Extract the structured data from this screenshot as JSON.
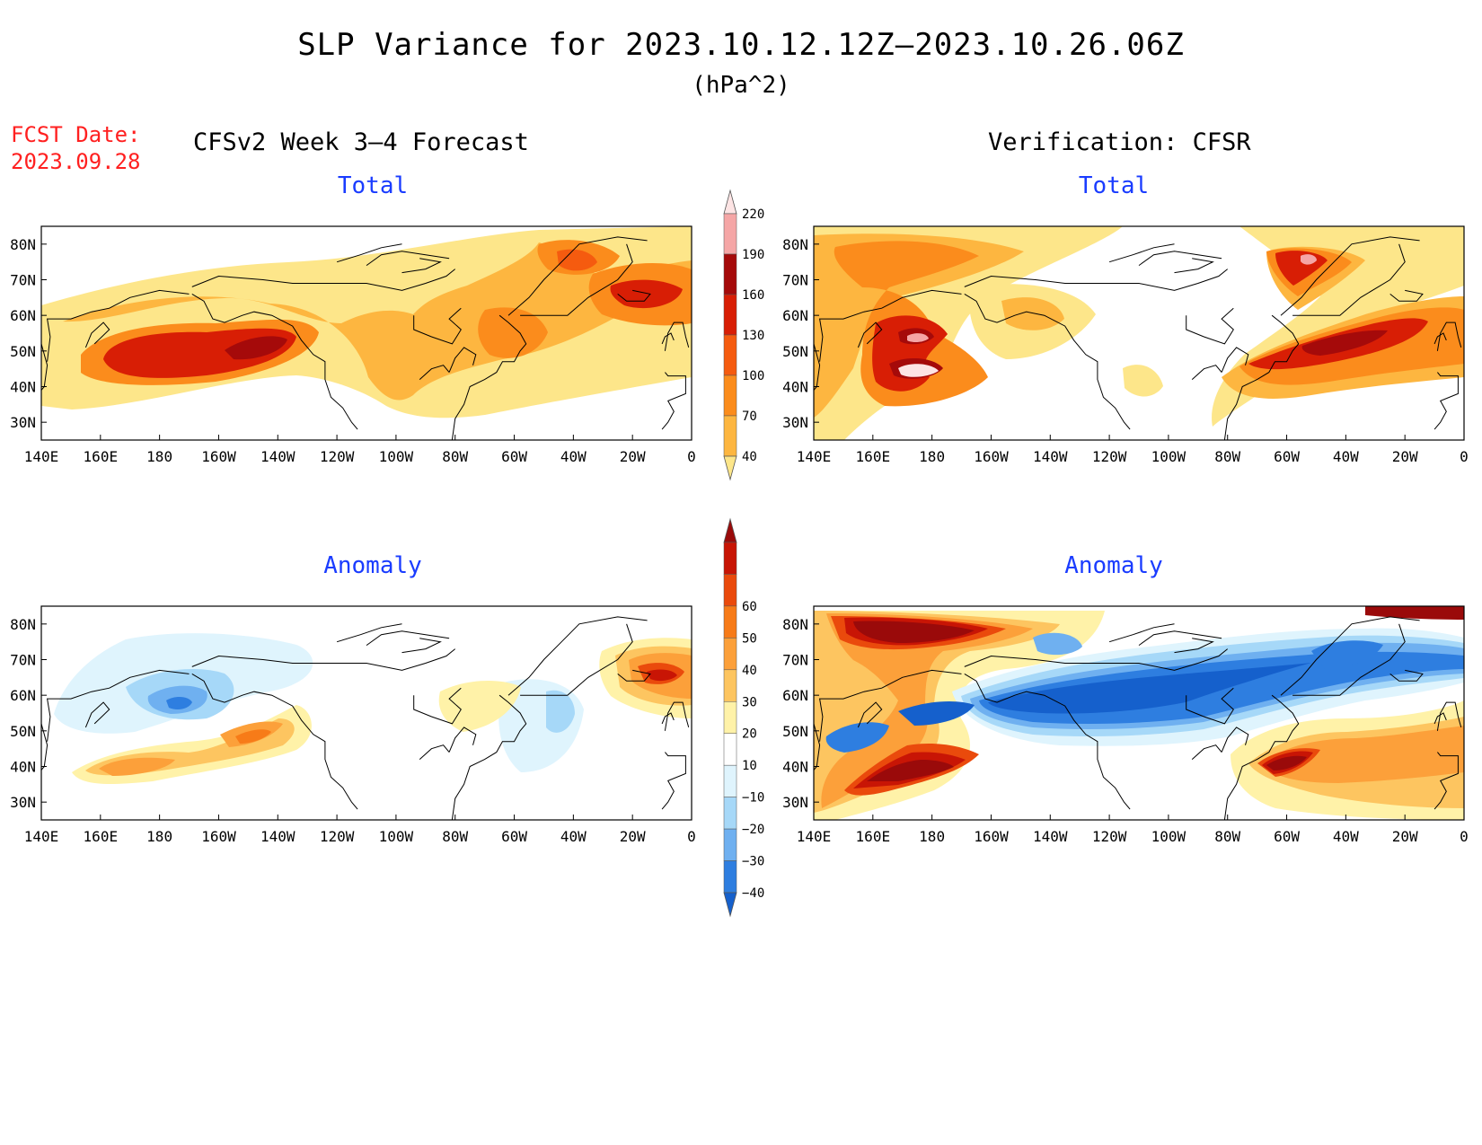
{
  "title": "SLP Variance for 2023.10.12.12Z–2023.10.26.06Z",
  "units": "(hPa^2)",
  "forecast_date_label": "FCST Date:",
  "forecast_date": "2023.09.28",
  "left_column_heading": "CFSv2 Week 3–4 Forecast",
  "right_column_heading": "Verification: CFSR",
  "panels": [
    {
      "id": "forecast-total",
      "title": "Total"
    },
    {
      "id": "verification-total",
      "title": "Total"
    },
    {
      "id": "forecast-anomaly",
      "title": "Anomaly"
    },
    {
      "id": "verification-anomaly",
      "title": "Anomaly"
    }
  ],
  "lon_ticks": [
    "140E",
    "160E",
    "180",
    "160W",
    "140W",
    "120W",
    "100W",
    "80W",
    "60W",
    "40W",
    "20W",
    "0"
  ],
  "lat_ticks": [
    "80N",
    "70N",
    "60N",
    "50N",
    "40N",
    "30N"
  ],
  "map_extent": {
    "lon_start": 140,
    "lon_end": 360,
    "lat_min": 25,
    "lat_max": 85
  },
  "colorbars": {
    "total": {
      "levels": [
        "40",
        "70",
        "100",
        "130",
        "160",
        "190",
        "220"
      ],
      "colors": [
        "#fde68a",
        "#fdb640",
        "#fb8c1c",
        "#f55b0f",
        "#d81e05",
        "#a50a0a",
        "#f5a6a6",
        "#fde4e4"
      ]
    },
    "anomaly": {
      "levels": [
        "−40",
        "−30",
        "−20",
        "−10",
        "10",
        "20",
        "30",
        "40",
        "50",
        "60"
      ],
      "colors": [
        "#1560cc",
        "#2e7ee0",
        "#6fb0f0",
        "#a6d8f8",
        "#dff4fd",
        "#ffffff",
        "#fff2a8",
        "#fdc560",
        "#fca03a",
        "#f77b18",
        "#ea4a0c",
        "#c81505",
        "#9a0a0a"
      ]
    }
  }
}
